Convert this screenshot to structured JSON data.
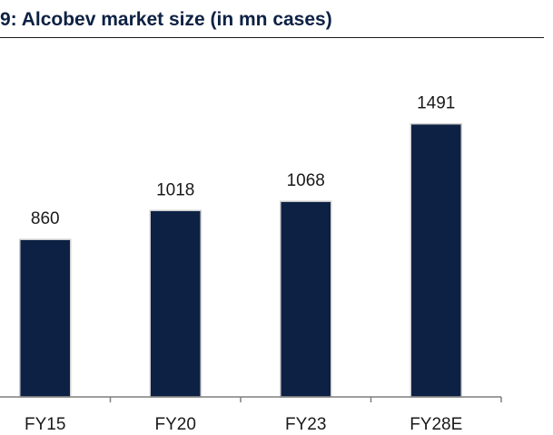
{
  "chart_data": {
    "type": "bar",
    "title": "9:  Alcobev market size (in mn cases)",
    "categories": [
      "FY15",
      "FY20",
      "FY23",
      "FY28E"
    ],
    "series": [
      {
        "values": [
          860,
          1018,
          1068,
          1491
        ]
      }
    ],
    "data_labels": [
      "860",
      "1018",
      "1068",
      "1491"
    ],
    "xlabel": "",
    "ylabel": "",
    "ylim": [
      0,
      1920
    ],
    "grid": false,
    "colors": {
      "bar": "#0d2144",
      "bar_edge": "#d0d0d0",
      "axis": "#7f7f7f",
      "title": "#0d2144"
    }
  }
}
